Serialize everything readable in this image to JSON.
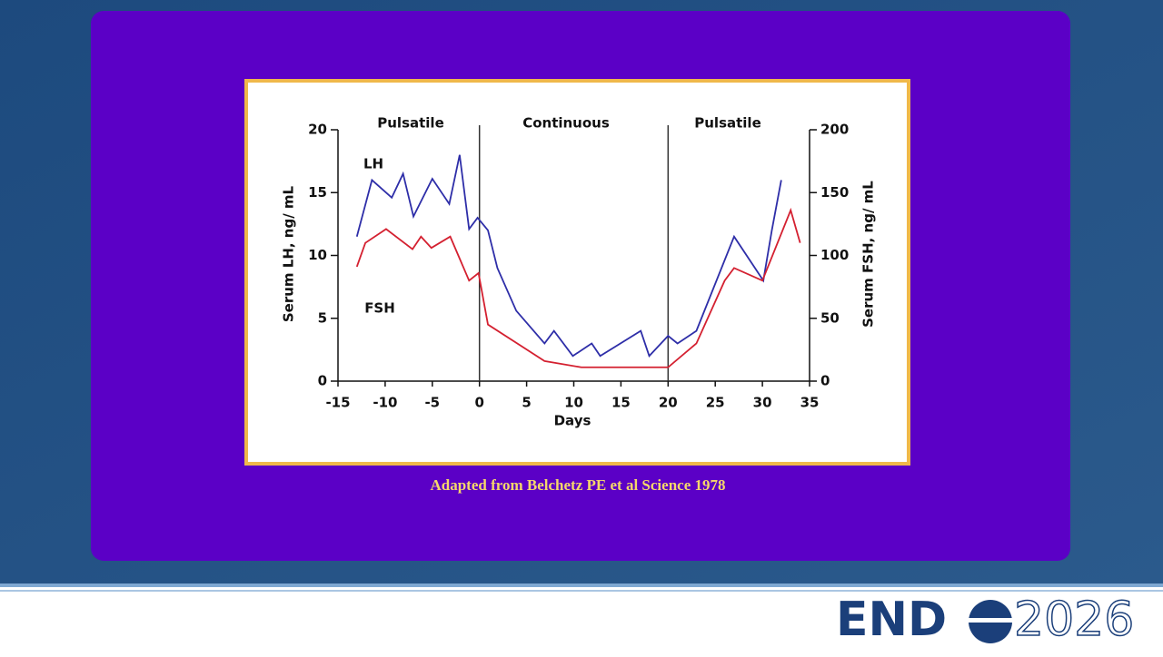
{
  "chart_data": {
    "type": "line",
    "xlabel": "Days",
    "ylabel": "Serum LH, ng/ mL",
    "y2label": "Serum FSH, ng/ mL",
    "xlim": [
      -15,
      35
    ],
    "xticks": [
      -15,
      -10,
      -5,
      0,
      5,
      10,
      15,
      20,
      25,
      30,
      35
    ],
    "ylim": [
      0,
      20
    ],
    "yticks": [
      0,
      5,
      10,
      15,
      20
    ],
    "y2lim": [
      0,
      200
    ],
    "y2ticks": [
      0,
      50,
      100,
      150,
      200
    ],
    "vlines": [
      0,
      20
    ],
    "annotations": [
      "Pulsatile",
      "Continuous",
      "Pulsatile"
    ],
    "series": [
      {
        "name": "LH",
        "color": "#2e2ea8",
        "x": [
          -13,
          -11.4,
          -9.3,
          -8.1,
          -7,
          -5,
          -3.2,
          -2.1,
          -1.1,
          -0.2,
          0.9,
          1.9,
          3.9,
          6.9,
          7.9,
          9.9,
          11.9,
          12.8,
          17.1,
          18,
          20,
          21,
          23,
          27,
          30.1,
          31,
          32
        ],
        "values": [
          11.5,
          16,
          14.6,
          16.5,
          13.1,
          16.1,
          14.1,
          18,
          12.1,
          13,
          12,
          9,
          5.6,
          3,
          4,
          2,
          3,
          2,
          4,
          2,
          3.6,
          3,
          4,
          11.5,
          8,
          12,
          16
        ]
      },
      {
        "name": "FSH",
        "color": "#d42030",
        "axis": "y2",
        "x": [
          -13,
          -12.1,
          -9.9,
          -7.1,
          -6.2,
          -5.1,
          -3.1,
          -1.1,
          -0.1,
          0.9,
          6.9,
          10.8,
          20,
          23,
          26,
          27,
          30,
          33,
          34
        ],
        "values": [
          91,
          110,
          121,
          105,
          115,
          106,
          115,
          80,
          86,
          45,
          16,
          11,
          11,
          30,
          80,
          90,
          80,
          136,
          110
        ]
      }
    ]
  },
  "caption": "Adapted from Belchetz PE et al Science 1978",
  "logo": {
    "left": "END",
    "right": "2026"
  }
}
